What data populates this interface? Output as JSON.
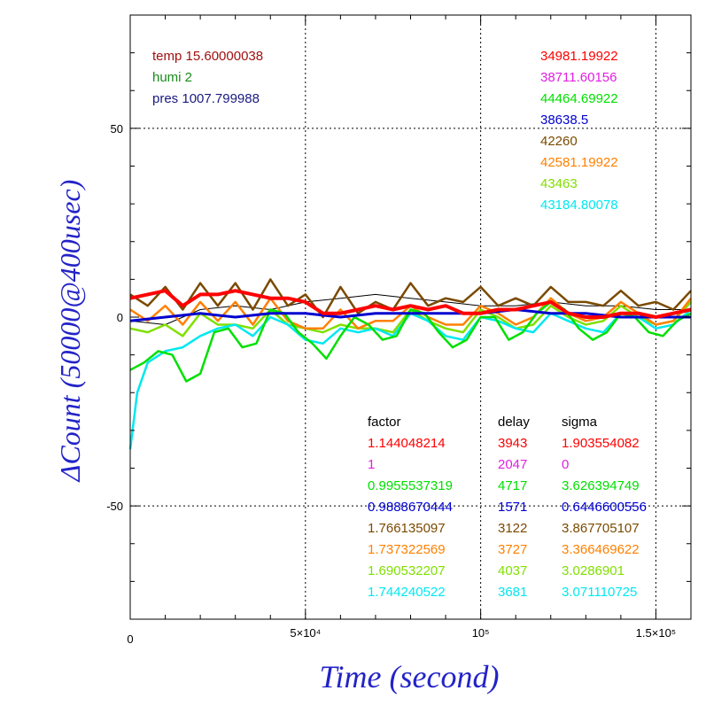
{
  "chart_data": {
    "type": "line",
    "xlabel": "Time (second)",
    "ylabel": "ΔCount (50000@400usec)",
    "xlim": [
      0,
      160000
    ],
    "ylim": [
      -80,
      80
    ],
    "grid": true,
    "grid_x": [
      50000,
      100000,
      150000
    ],
    "grid_y": [
      50,
      -50
    ],
    "x_ticks": [
      {
        "value": 0,
        "label": "0"
      },
      {
        "value": 50000,
        "label": "5×10⁴"
      },
      {
        "value": 100000,
        "label": "10⁵"
      },
      {
        "value": 150000,
        "label": "1.5×10⁵"
      }
    ],
    "y_ticks": [
      {
        "value": 50,
        "label": "50"
      },
      {
        "value": 0,
        "label": "0"
      },
      {
        "value": -50,
        "label": "-50"
      }
    ],
    "env_labels": [
      {
        "text": "temp 15.60000038",
        "color": "#a01010"
      },
      {
        "text": "humi 2",
        "color": "#1a8a1a"
      },
      {
        "text": "pres 1007.799988",
        "color": "#1a1a80"
      }
    ],
    "table_headers": [
      "factor",
      "delay",
      "sigma"
    ],
    "series": [
      {
        "color": "#ff0000",
        "mean_label": "34981.19922",
        "factor": "1.144048214",
        "delay": "3943",
        "sigma": "1.903554082",
        "x": [
          0,
          5000,
          10000,
          15000,
          20000,
          25000,
          30000,
          35000,
          40000,
          45000,
          50000,
          55000,
          60000,
          65000,
          70000,
          75000,
          80000,
          85000,
          90000,
          95000,
          100000,
          105000,
          110000,
          115000,
          120000,
          125000,
          130000,
          135000,
          140000,
          145000,
          150000,
          155000,
          160000
        ],
        "y": [
          5,
          6,
          7,
          3,
          6,
          6,
          7,
          6,
          5,
          5,
          4,
          1,
          1,
          2,
          3,
          2,
          3,
          2,
          3,
          1,
          1,
          2,
          2,
          3,
          4,
          1,
          0,
          0,
          1,
          1,
          0,
          1,
          2
        ]
      },
      {
        "color": "#e020e0",
        "mean_label": "38711.60156",
        "factor": "1",
        "delay": "2047",
        "sigma": "0",
        "x": [],
        "y": []
      },
      {
        "color": "#00e000",
        "mean_label": "44464.69922",
        "factor": "0.9955537319",
        "delay": "4717",
        "sigma": "3.626394749",
        "x": [
          0,
          4000,
          8000,
          12000,
          16000,
          20000,
          24000,
          28000,
          32000,
          36000,
          40000,
          44000,
          48000,
          52000,
          56000,
          60000,
          64000,
          68000,
          72000,
          76000,
          80000,
          84000,
          88000,
          92000,
          96000,
          100000,
          104000,
          108000,
          112000,
          116000,
          120000,
          124000,
          128000,
          132000,
          136000,
          140000,
          144000,
          148000,
          152000,
          156000,
          160000
        ],
        "y": [
          -14,
          -12,
          -9,
          -10,
          -17,
          -15,
          -4,
          -3,
          -8,
          -7,
          2,
          1,
          -4,
          -7,
          -11,
          -5,
          0,
          -2,
          -6,
          -5,
          2,
          1,
          -4,
          -8,
          -6,
          0,
          0,
          -6,
          -4,
          1,
          4,
          2,
          -3,
          -6,
          -4,
          1,
          0,
          -4,
          -5,
          -1,
          1
        ]
      },
      {
        "color": "#0000d0",
        "mean_label": "38638.5",
        "factor": "0.9888670444",
        "delay": "1571",
        "sigma": "0.6446600556",
        "x": [
          0,
          10000,
          20000,
          30000,
          40000,
          50000,
          60000,
          70000,
          80000,
          90000,
          100000,
          110000,
          120000,
          130000,
          140000,
          150000,
          160000
        ],
        "y": [
          -1,
          0,
          1,
          0,
          1,
          1,
          0,
          1,
          1,
          1,
          1,
          2,
          1,
          1,
          0,
          0,
          0
        ]
      },
      {
        "color": "#7a4a00",
        "mean_label": "42260",
        "factor": "1.766135097",
        "delay": "3122",
        "sigma": "3.867705107",
        "x": [
          0,
          5000,
          10000,
          15000,
          20000,
          25000,
          30000,
          35000,
          40000,
          45000,
          50000,
          55000,
          60000,
          65000,
          70000,
          75000,
          80000,
          85000,
          90000,
          95000,
          100000,
          105000,
          110000,
          115000,
          120000,
          125000,
          130000,
          135000,
          140000,
          145000,
          150000,
          155000,
          160000
        ],
        "y": [
          6,
          3,
          8,
          2,
          9,
          3,
          9,
          2,
          10,
          3,
          6,
          0,
          8,
          1,
          4,
          2,
          9,
          3,
          5,
          4,
          8,
          3,
          5,
          3,
          8,
          4,
          4,
          3,
          7,
          3,
          4,
          2,
          7
        ]
      },
      {
        "color": "#ff8000",
        "mean_label": "42581.19922",
        "factor": "1.737322569",
        "delay": "3727",
        "sigma": "3.366469622",
        "x": [
          0,
          5000,
          10000,
          15000,
          20000,
          25000,
          30000,
          35000,
          40000,
          45000,
          50000,
          55000,
          60000,
          65000,
          70000,
          75000,
          80000,
          85000,
          90000,
          95000,
          100000,
          105000,
          110000,
          115000,
          120000,
          125000,
          130000,
          135000,
          140000,
          145000,
          150000,
          155000,
          160000
        ],
        "y": [
          2,
          -1,
          3,
          -2,
          4,
          -1,
          4,
          -2,
          5,
          -1,
          -3,
          -3,
          2,
          -3,
          -1,
          -1,
          3,
          0,
          -2,
          -2,
          3,
          1,
          -2,
          0,
          5,
          1,
          -1,
          0,
          4,
          1,
          -2,
          -1,
          5
        ]
      },
      {
        "color": "#80e000",
        "mean_label": "43463",
        "factor": "1.690532207",
        "delay": "4037",
        "sigma": "3.0286901",
        "x": [
          0,
          5000,
          10000,
          15000,
          20000,
          25000,
          30000,
          35000,
          40000,
          45000,
          50000,
          55000,
          60000,
          65000,
          70000,
          75000,
          80000,
          85000,
          90000,
          95000,
          100000,
          105000,
          110000,
          115000,
          120000,
          125000,
          130000,
          135000,
          140000,
          145000,
          150000,
          155000,
          160000
        ],
        "y": [
          -3,
          -4,
          -2,
          -5,
          1,
          -2,
          -2,
          -3,
          2,
          -2,
          -3,
          -4,
          -2,
          -3,
          -3,
          -4,
          2,
          -1,
          -3,
          -4,
          2,
          0,
          -3,
          -2,
          3,
          0,
          -2,
          -1,
          3,
          0,
          -2,
          -1,
          4
        ]
      },
      {
        "color": "#00e8f0",
        "mean_label": "43184.80078",
        "factor": "1.744240522",
        "delay": "3681",
        "sigma": "3.071110725",
        "x": [
          0,
          2000,
          5000,
          10000,
          15000,
          20000,
          25000,
          30000,
          35000,
          40000,
          45000,
          50000,
          55000,
          60000,
          65000,
          70000,
          75000,
          80000,
          85000,
          90000,
          95000,
          100000,
          105000,
          110000,
          115000,
          120000,
          125000,
          130000,
          135000,
          140000,
          145000,
          150000,
          155000,
          160000
        ],
        "y": [
          -35,
          -20,
          -12,
          -9,
          -8,
          -5,
          -3,
          -2,
          -5,
          0,
          -2,
          -6,
          -7,
          -3,
          -4,
          -3,
          -5,
          1,
          -1,
          -5,
          -6,
          0,
          -1,
          -3,
          -4,
          1,
          -1,
          -3,
          -4,
          1,
          0,
          -3,
          -2,
          2
        ]
      }
    ],
    "ref_series": {
      "color": "#000000",
      "x": [
        0,
        10000,
        20000,
        30000,
        40000,
        50000,
        60000,
        70000,
        80000,
        90000,
        100000,
        110000,
        120000,
        130000,
        140000,
        150000,
        160000
      ],
      "y": [
        -1,
        -2,
        2,
        3,
        2,
        4,
        5,
        6,
        5,
        4,
        3,
        3,
        4,
        3,
        3,
        2,
        2
      ]
    }
  }
}
